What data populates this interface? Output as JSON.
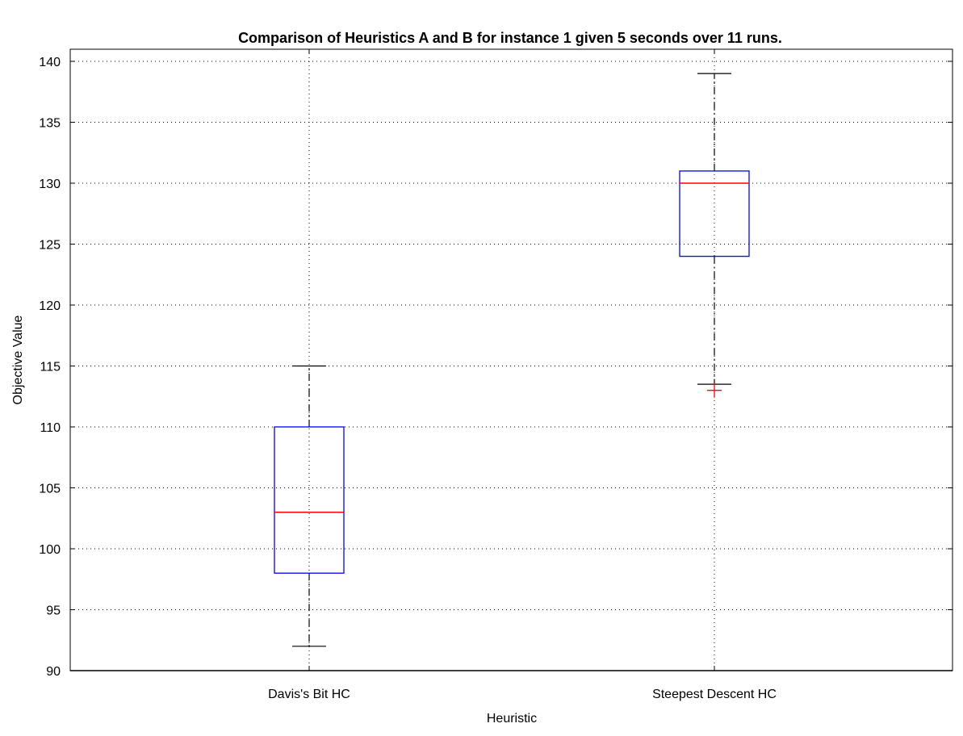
{
  "chart_data": {
    "type": "boxplot",
    "title": "Comparison of Heuristics A and B for instance 1 given 5 seconds over 11 runs.",
    "xlabel": "Heuristic",
    "ylabel": "Objective Value",
    "ylim": [
      90,
      140
    ],
    "yticks": [
      90,
      95,
      100,
      105,
      110,
      115,
      120,
      125,
      130,
      135,
      140
    ],
    "grid": true,
    "categories": [
      "Davis's Bit HC",
      "Steepest Descent HC"
    ],
    "boxes": [
      {
        "category": "Davis's Bit HC",
        "whisker_low": 92,
        "q1": 98,
        "median": 103,
        "q3": 110,
        "whisker_high": 115,
        "outliers": []
      },
      {
        "category": "Steepest Descent HC",
        "whisker_low": 113.5,
        "q1": 124,
        "median": 130,
        "q3": 131,
        "whisker_high": 139,
        "outliers": [
          113
        ]
      }
    ],
    "colors": {
      "box": "#0000ff",
      "median": "#ff0000",
      "outlier": "#ff0000",
      "whisker": "#000000"
    }
  }
}
